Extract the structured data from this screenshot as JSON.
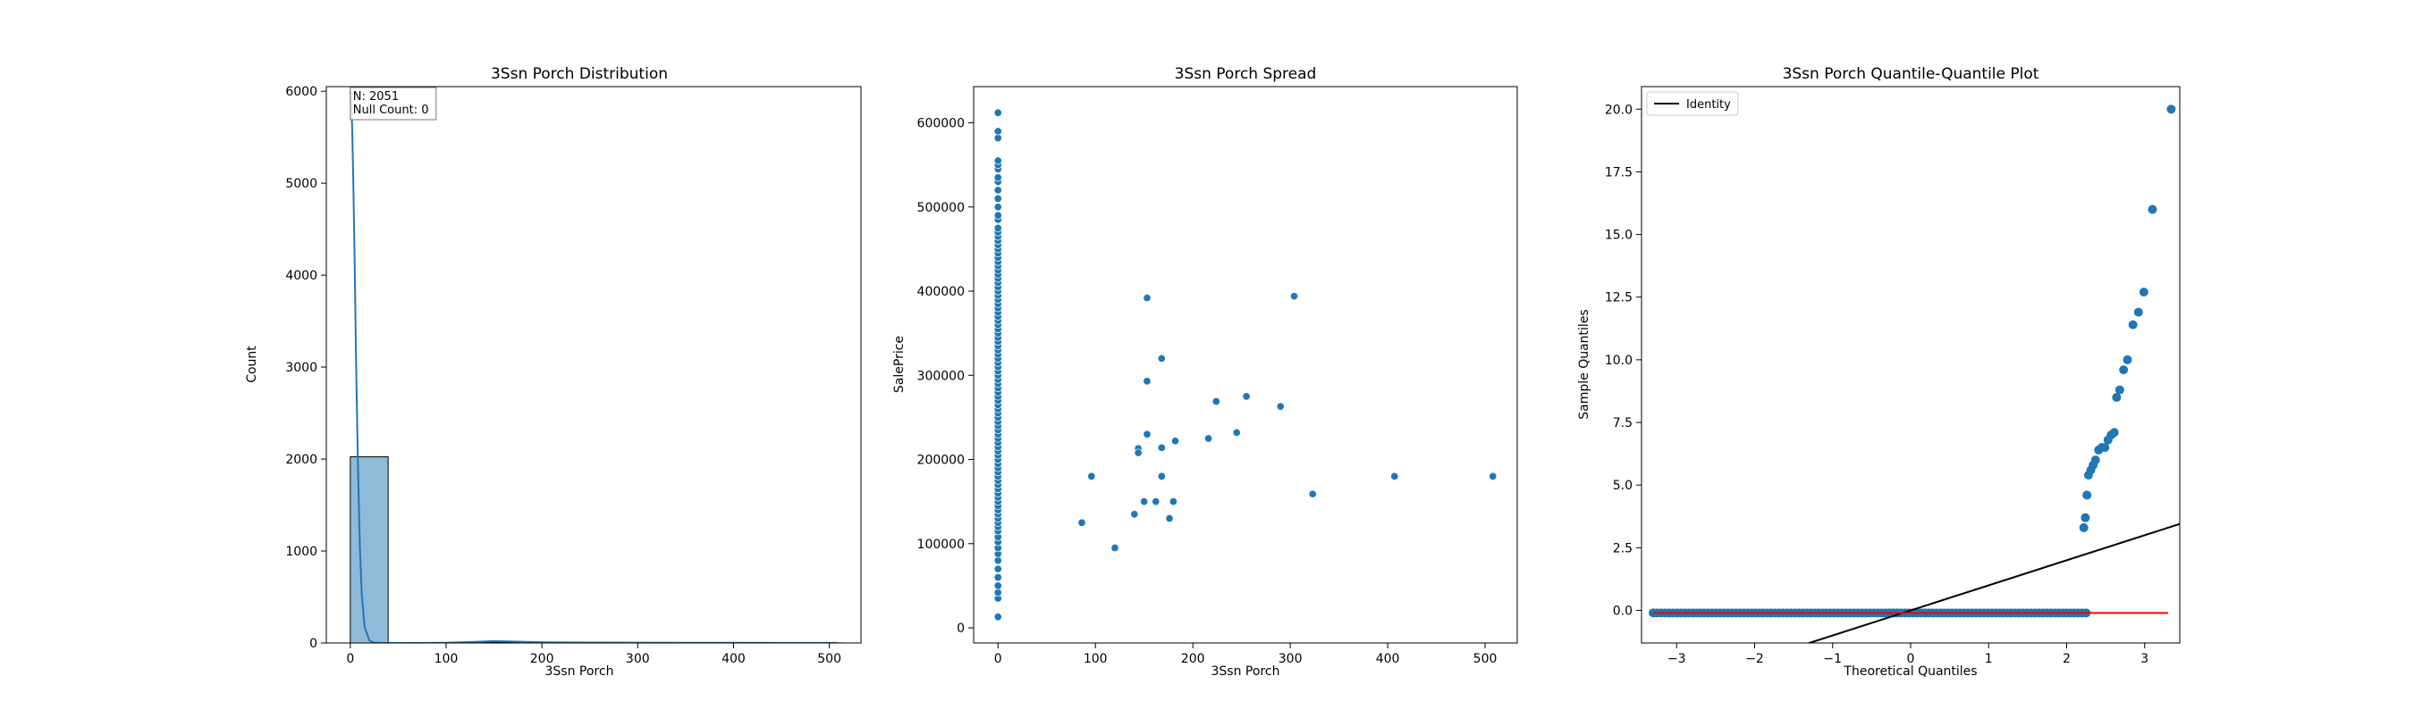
{
  "chart_data": [
    {
      "type": "histogram",
      "title": "3Ssn Porch Distribution",
      "xlabel": "3Ssn Porch",
      "ylabel": "Count",
      "xlim": [
        -25,
        533
      ],
      "ylim": [
        0,
        6050
      ],
      "xticks": [
        0,
        100,
        200,
        300,
        400,
        500
      ],
      "yticks": [
        0,
        1000,
        2000,
        3000,
        4000,
        5000,
        6000
      ],
      "bins": [
        {
          "x0": 0,
          "x1": 39.5,
          "count": 2025
        },
        {
          "x0": 39.5,
          "x1": 79,
          "count": 0
        },
        {
          "x0": 79,
          "x1": 118.5,
          "count": 2
        },
        {
          "x0": 118.5,
          "x1": 158,
          "count": 7
        },
        {
          "x0": 158,
          "x1": 197.5,
          "count": 9
        },
        {
          "x0": 197.5,
          "x1": 237,
          "count": 2
        },
        {
          "x0": 237,
          "x1": 276.5,
          "count": 2
        },
        {
          "x0": 276.5,
          "x1": 316,
          "count": 2
        },
        {
          "x0": 316,
          "x1": 355.5,
          "count": 1
        },
        {
          "x0": 355.5,
          "x1": 395,
          "count": 0
        },
        {
          "x0": 395,
          "x1": 434.5,
          "count": 1
        },
        {
          "x0": 434.5,
          "x1": 474,
          "count": 0
        },
        {
          "x0": 474,
          "x1": 513.5,
          "count": 1
        }
      ],
      "kde": {
        "x": [
          0,
          1,
          2,
          3,
          4,
          5,
          6,
          8,
          10,
          12,
          15,
          20,
          25,
          30,
          40,
          60,
          100,
          130,
          150,
          170,
          200,
          250,
          300,
          350,
          400,
          450,
          508
        ],
        "y": [
          6000,
          5900,
          5600,
          5100,
          4500,
          3800,
          3100,
          1900,
          1050,
          520,
          170,
          25,
          4,
          1,
          0,
          0,
          3,
          12,
          20,
          16,
          8,
          5,
          4,
          3,
          3,
          1,
          1
        ]
      },
      "annotation": {
        "lines": [
          "N: 2051",
          "Null Count: 0"
        ],
        "placement": "top-left"
      },
      "colors": {
        "bar": "#8fbbd9",
        "bar_edge": "#000000",
        "kde": "#1f77b4"
      }
    },
    {
      "type": "scatter",
      "title": "3Ssn Porch Spread",
      "xlabel": "3Ssn Porch",
      "ylabel": "SalePrice",
      "xlim": [
        -25,
        533
      ],
      "ylim": [
        -18000,
        643000
      ],
      "xticks": [
        0,
        100,
        200,
        300,
        400,
        500
      ],
      "yticks": [
        0,
        100000,
        200000,
        300000,
        400000,
        500000,
        600000
      ],
      "zero_porch_prices": [
        13000,
        35000,
        42000,
        50000,
        60000,
        70000,
        80000,
        88000,
        95000,
        102000,
        108000,
        115000,
        120000,
        125000,
        130000,
        135000,
        140000,
        145000,
        150000,
        155000,
        160000,
        165000,
        170000,
        175000,
        180000,
        185000,
        190000,
        195000,
        200000,
        205000,
        210000,
        215000,
        220000,
        225000,
        230000,
        235000,
        240000,
        245000,
        250000,
        255000,
        260000,
        265000,
        270000,
        275000,
        280000,
        285000,
        290000,
        295000,
        300000,
        305000,
        310000,
        315000,
        320000,
        325000,
        330000,
        335000,
        340000,
        345000,
        350000,
        355000,
        360000,
        365000,
        370000,
        375000,
        380000,
        385000,
        390000,
        395000,
        400000,
        405000,
        410000,
        415000,
        420000,
        425000,
        430000,
        435000,
        440000,
        445000,
        450000,
        455000,
        460000,
        465000,
        470000,
        475000,
        485000,
        490000,
        500000,
        510000,
        520000,
        530000,
        535000,
        545000,
        550000,
        555000,
        582000,
        590000,
        612000
      ],
      "points": [
        {
          "x": 86,
          "y": 125000
        },
        {
          "x": 96,
          "y": 180000
        },
        {
          "x": 120,
          "y": 95000
        },
        {
          "x": 140,
          "y": 135000
        },
        {
          "x": 144,
          "y": 213000
        },
        {
          "x": 144,
          "y": 208000
        },
        {
          "x": 150,
          "y": 150000
        },
        {
          "x": 153,
          "y": 230000
        },
        {
          "x": 153,
          "y": 293000
        },
        {
          "x": 153,
          "y": 392000
        },
        {
          "x": 162,
          "y": 150000
        },
        {
          "x": 168,
          "y": 214000
        },
        {
          "x": 168,
          "y": 180000
        },
        {
          "x": 168,
          "y": 320000
        },
        {
          "x": 176,
          "y": 130000
        },
        {
          "x": 180,
          "y": 150000
        },
        {
          "x": 182,
          "y": 222000
        },
        {
          "x": 216,
          "y": 225000
        },
        {
          "x": 224,
          "y": 269000
        },
        {
          "x": 245,
          "y": 232000
        },
        {
          "x": 255,
          "y": 275000
        },
        {
          "x": 290,
          "y": 263000
        },
        {
          "x": 304,
          "y": 394000
        },
        {
          "x": 323,
          "y": 159000
        },
        {
          "x": 407,
          "y": 180000
        },
        {
          "x": 508,
          "y": 180000
        }
      ],
      "colors": {
        "point": "#1f77b4"
      }
    },
    {
      "type": "qq",
      "title": "3Ssn Porch Quantile-Quantile Plot",
      "xlabel": "Theoretical Quantiles",
      "ylabel": "Sample Quantiles",
      "xlim": [
        -3.45,
        3.45
      ],
      "ylim": [
        -1.3,
        20.9
      ],
      "xticks": [
        -3,
        -2,
        -1,
        0,
        1,
        2,
        3
      ],
      "yticks": [
        0.0,
        2.5,
        5.0,
        7.5,
        10.0,
        12.5,
        15.0,
        17.5,
        20.0
      ],
      "ytick_labels": [
        "0.0",
        "2.5",
        "5.0",
        "7.5",
        "10.0",
        "12.5",
        "15.0",
        "17.5",
        "20.0"
      ],
      "legend": {
        "entries": [
          "Identity"
        ],
        "placement": "top-left"
      },
      "identity_line": {
        "slope": 1,
        "intercept": 0,
        "color": "#000000"
      },
      "fit_line": {
        "y": -0.1,
        "x_range": [
          -3.3,
          3.3
        ],
        "color": "#ff0000"
      },
      "baseline_points": {
        "y": -0.1,
        "x_range": [
          -3.3,
          2.25
        ]
      },
      "points": [
        {
          "x": 2.22,
          "y": 3.3
        },
        {
          "x": 2.24,
          "y": 3.7
        },
        {
          "x": 2.26,
          "y": 4.6
        },
        {
          "x": 2.28,
          "y": 5.4
        },
        {
          "x": 2.31,
          "y": 5.6
        },
        {
          "x": 2.34,
          "y": 5.8
        },
        {
          "x": 2.37,
          "y": 6.0
        },
        {
          "x": 2.41,
          "y": 6.4
        },
        {
          "x": 2.45,
          "y": 6.5
        },
        {
          "x": 2.49,
          "y": 6.5
        },
        {
          "x": 2.53,
          "y": 6.8
        },
        {
          "x": 2.57,
          "y": 7.0
        },
        {
          "x": 2.61,
          "y": 7.1
        },
        {
          "x": 2.64,
          "y": 8.5
        },
        {
          "x": 2.68,
          "y": 8.8
        },
        {
          "x": 2.73,
          "y": 9.6
        },
        {
          "x": 2.78,
          "y": 10.0
        },
        {
          "x": 2.85,
          "y": 11.4
        },
        {
          "x": 2.92,
          "y": 11.9
        },
        {
          "x": 2.99,
          "y": 12.7
        },
        {
          "x": 3.1,
          "y": 16.0
        },
        {
          "x": 3.34,
          "y": 20.0
        }
      ],
      "colors": {
        "point": "#1f77b4"
      }
    }
  ]
}
